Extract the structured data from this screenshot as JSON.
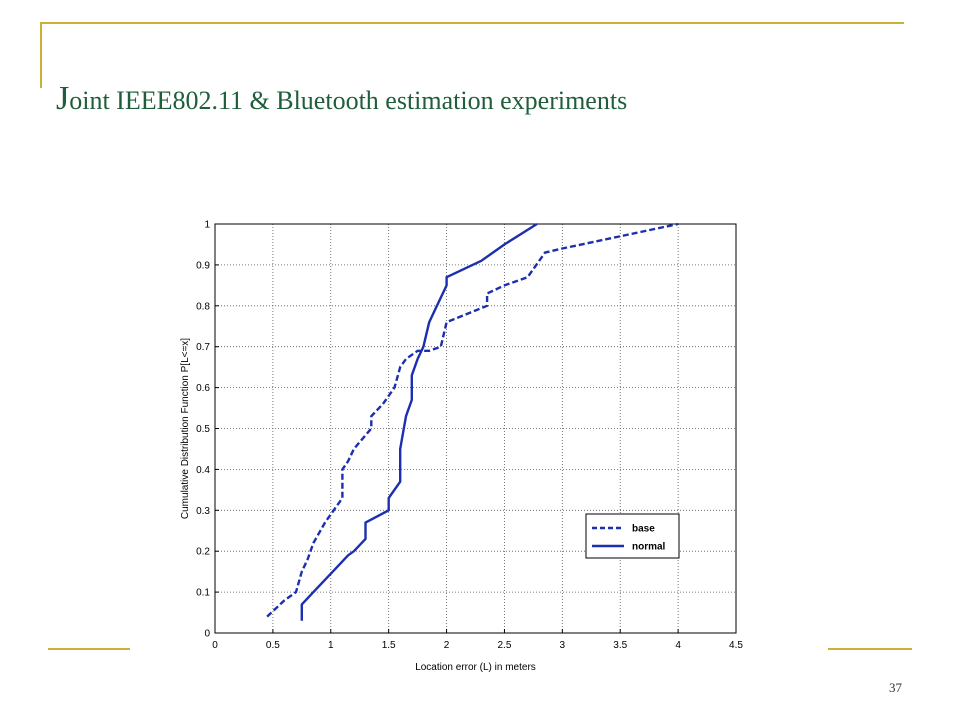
{
  "slide": {
    "title_first_letter": "J",
    "title_rest": "oint IEEE802.11 & Bluetooth estimation experiments",
    "page_number": "37"
  },
  "colors": {
    "accent_line": "#c9b037",
    "title": "#1f5e3a",
    "series": "#1c2fb0"
  },
  "chart_data": {
    "type": "line",
    "title": "",
    "xlabel": "Location error (L) in meters",
    "ylabel": "Cumulative Distribution Function P[L<=x]",
    "xlim": [
      0,
      4.5
    ],
    "ylim": [
      0,
      1
    ],
    "xticks": [
      "0",
      "0.5",
      "1",
      "1.5",
      "2",
      "2.5",
      "3",
      "3.5",
      "4",
      "4.5"
    ],
    "yticks": [
      "0",
      "0.1",
      "0.2",
      "0.3",
      "0.4",
      "0.5",
      "0.6",
      "0.7",
      "0.8",
      "0.9",
      "1"
    ],
    "grid": true,
    "legend_position": "bottom-right",
    "series": [
      {
        "name": "base",
        "style": "dashed",
        "points": [
          [
            0.45,
            0.04
          ],
          [
            0.6,
            0.08
          ],
          [
            0.7,
            0.1
          ],
          [
            0.75,
            0.15
          ],
          [
            0.8,
            0.18
          ],
          [
            0.85,
            0.22
          ],
          [
            0.95,
            0.27
          ],
          [
            1.1,
            0.33
          ],
          [
            1.1,
            0.4
          ],
          [
            1.15,
            0.42
          ],
          [
            1.2,
            0.45
          ],
          [
            1.35,
            0.5
          ],
          [
            1.35,
            0.53
          ],
          [
            1.45,
            0.56
          ],
          [
            1.55,
            0.6
          ],
          [
            1.6,
            0.65
          ],
          [
            1.65,
            0.67
          ],
          [
            1.75,
            0.69
          ],
          [
            1.85,
            0.69
          ],
          [
            1.95,
            0.7
          ],
          [
            2.0,
            0.76
          ],
          [
            2.35,
            0.8
          ],
          [
            2.35,
            0.83
          ],
          [
            2.5,
            0.85
          ],
          [
            2.7,
            0.87
          ],
          [
            2.85,
            0.93
          ],
          [
            3.0,
            0.94
          ],
          [
            3.5,
            0.97
          ],
          [
            4.0,
            1.0
          ]
        ]
      },
      {
        "name": "normal",
        "style": "solid",
        "points": [
          [
            0.75,
            0.03
          ],
          [
            0.75,
            0.07
          ],
          [
            0.85,
            0.1
          ],
          [
            0.95,
            0.13
          ],
          [
            1.05,
            0.16
          ],
          [
            1.15,
            0.19
          ],
          [
            1.2,
            0.2
          ],
          [
            1.3,
            0.23
          ],
          [
            1.3,
            0.27
          ],
          [
            1.5,
            0.3
          ],
          [
            1.5,
            0.33
          ],
          [
            1.6,
            0.37
          ],
          [
            1.6,
            0.45
          ],
          [
            1.65,
            0.53
          ],
          [
            1.7,
            0.57
          ],
          [
            1.7,
            0.63
          ],
          [
            1.75,
            0.67
          ],
          [
            1.8,
            0.7
          ],
          [
            1.85,
            0.76
          ],
          [
            1.9,
            0.79
          ],
          [
            1.95,
            0.82
          ],
          [
            2.0,
            0.85
          ],
          [
            2.0,
            0.87
          ],
          [
            2.3,
            0.91
          ],
          [
            2.5,
            0.95
          ],
          [
            2.78,
            1.0
          ]
        ]
      }
    ]
  }
}
